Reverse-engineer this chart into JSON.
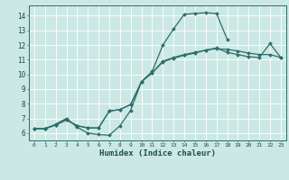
{
  "xlabel": "Humidex (Indice chaleur)",
  "bg_color": "#cce8e4",
  "grid_color": "#ffffff",
  "line_color": "#2d6e6a",
  "xlim": [
    -0.5,
    23.5
  ],
  "ylim": [
    5.5,
    14.7
  ],
  "xticks": [
    0,
    1,
    2,
    3,
    4,
    5,
    6,
    7,
    8,
    9,
    10,
    11,
    12,
    13,
    14,
    15,
    16,
    17,
    18,
    19,
    20,
    21,
    22,
    23
  ],
  "yticks": [
    6,
    7,
    8,
    9,
    10,
    11,
    12,
    13,
    14
  ],
  "series": [
    {
      "x": [
        0,
        1,
        2,
        3,
        4,
        5,
        6,
        7,
        8,
        9,
        10,
        11,
        12,
        13,
        14,
        15,
        16,
        17,
        18
      ],
      "y": [
        6.3,
        6.3,
        6.6,
        7.0,
        6.4,
        6.0,
        5.9,
        5.85,
        6.5,
        7.55,
        9.5,
        10.2,
        12.0,
        13.1,
        14.1,
        14.15,
        14.2,
        14.15,
        12.4
      ]
    },
    {
      "x": [
        0,
        1,
        2,
        3,
        4,
        5,
        6,
        7,
        8,
        9,
        10,
        11,
        12,
        13,
        14,
        15,
        16,
        17,
        18,
        19,
        20,
        21,
        22,
        23
      ],
      "y": [
        6.3,
        6.3,
        6.55,
        6.9,
        6.5,
        6.35,
        6.35,
        7.5,
        7.6,
        7.95,
        9.5,
        10.1,
        10.9,
        11.15,
        11.35,
        11.5,
        11.65,
        11.8,
        11.5,
        11.35,
        11.2,
        11.15,
        12.1,
        11.15
      ]
    },
    {
      "x": [
        0,
        1,
        2,
        3,
        4,
        5,
        6,
        7,
        8,
        9,
        10,
        11,
        12,
        13,
        14,
        15,
        16,
        17,
        18,
        19,
        20,
        21,
        22,
        23
      ],
      "y": [
        6.3,
        6.3,
        6.55,
        6.9,
        6.5,
        6.35,
        6.35,
        7.5,
        7.6,
        7.95,
        9.5,
        10.1,
        10.85,
        11.1,
        11.3,
        11.45,
        11.65,
        11.75,
        11.7,
        11.6,
        11.45,
        11.35,
        11.35,
        11.15
      ]
    }
  ]
}
